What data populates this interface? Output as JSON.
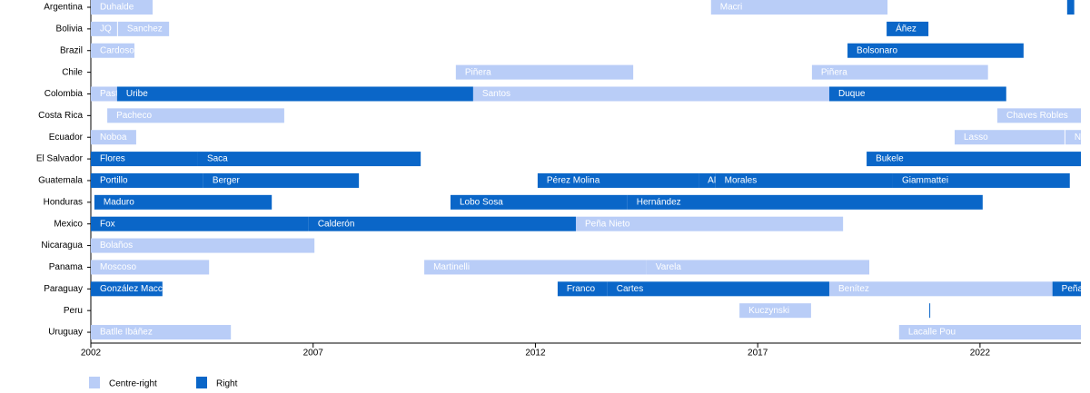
{
  "chart_data": {
    "type": "timeline",
    "series": [
      {
        "name": "Centre-right",
        "color": "#b9cdf7"
      },
      {
        "name": "Right",
        "color": "#0a66c8"
      }
    ],
    "xlim": [
      2002,
      2024.27
    ],
    "xticks": [
      2002,
      2007,
      2012,
      2017,
      2022
    ],
    "rows": [
      {
        "country": "Argentina",
        "segments": [
          {
            "label": "Duhalde",
            "start": 2002,
            "end": 2003.39,
            "group": 0
          },
          {
            "label": "Macri",
            "start": 2015.95,
            "end": 2019.92,
            "group": 0
          },
          {
            "start": 2023.96,
            "end": 2024.12,
            "group": 1
          }
        ]
      },
      {
        "country": "Bolivia",
        "segments": [
          {
            "label": "JQ",
            "start": 2002,
            "end": 2002.59,
            "group": 0
          },
          {
            "label": "Sanchez",
            "start": 2002.61,
            "end": 2003.76,
            "group": 0
          },
          {
            "label": "Áñez",
            "start": 2019.9,
            "end": 2020.84,
            "group": 1
          }
        ]
      },
      {
        "country": "Brazil",
        "segments": [
          {
            "label": "Cardoso",
            "start": 2002,
            "end": 2002.98,
            "group": 0
          },
          {
            "label": "Bolsonaro",
            "start": 2019.02,
            "end": 2022.98,
            "group": 1
          }
        ]
      },
      {
        "country": "Chile",
        "segments": [
          {
            "label": "Piñera",
            "start": 2010.21,
            "end": 2014.2,
            "group": 0
          },
          {
            "label": "Piñera",
            "start": 2018.22,
            "end": 2022.18,
            "group": 0
          }
        ]
      },
      {
        "country": "Colombia",
        "segments": [
          {
            "label": "Pastrana",
            "start": 2002,
            "end": 2002.59,
            "group": 0
          },
          {
            "label": "Uribe",
            "start": 2002.59,
            "end": 2010.6,
            "group": 1
          },
          {
            "label": "Santos",
            "start": 2010.6,
            "end": 2018.61,
            "group": 0
          },
          {
            "label": "Duque",
            "start": 2018.61,
            "end": 2022.59,
            "group": 1
          }
        ]
      },
      {
        "country": "Costa Rica",
        "segments": [
          {
            "label": "Pacheco",
            "start": 2002.37,
            "end": 2006.35,
            "group": 0
          },
          {
            "label": "Chaves Robles",
            "start": 2022.39,
            "end": 2024.27,
            "group": 0
          }
        ]
      },
      {
        "country": "Ecuador",
        "segments": [
          {
            "label": "Noboa",
            "start": 2002,
            "end": 2003.02,
            "group": 0
          },
          {
            "label": "Lasso",
            "start": 2021.43,
            "end": 2023.9,
            "group": 0
          },
          {
            "label": "Noboa",
            "start": 2023.92,
            "end": 2024.27,
            "group": 0
          }
        ]
      },
      {
        "country": "El Salvador",
        "segments": [
          {
            "label": "Flores",
            "start": 2002,
            "end": 2004.41,
            "group": 1
          },
          {
            "label": "Saca",
            "start": 2004.41,
            "end": 2009.42,
            "group": 1
          },
          {
            "label": "Bukele",
            "start": 2019.45,
            "end": 2024.27,
            "group": 1
          }
        ]
      },
      {
        "country": "Guatemala",
        "segments": [
          {
            "label": "Portillo",
            "start": 2002,
            "end": 2004.53,
            "group": 1
          },
          {
            "label": "Berger",
            "start": 2004.53,
            "end": 2008.03,
            "group": 1
          },
          {
            "label": "Pérez Molina",
            "start": 2012.05,
            "end": 2015.67,
            "group": 1
          },
          {
            "label": "AM",
            "start": 2015.67,
            "end": 2016.05,
            "group": 1
          },
          {
            "label": "Morales",
            "start": 2016.05,
            "end": 2020.04,
            "group": 1
          },
          {
            "label": "Giammattei",
            "start": 2020.04,
            "end": 2024.02,
            "group": 1
          }
        ]
      },
      {
        "country": "Honduras",
        "segments": [
          {
            "label": "Maduro",
            "start": 2002.08,
            "end": 2006.07,
            "group": 1
          },
          {
            "label": "Lobo Sosa",
            "start": 2010.09,
            "end": 2014.07,
            "group": 1
          },
          {
            "label": "Hernández",
            "start": 2014.07,
            "end": 2022.06,
            "group": 1
          }
        ]
      },
      {
        "country": "Mexico",
        "segments": [
          {
            "label": "Fox",
            "start": 2002,
            "end": 2006.9,
            "group": 1
          },
          {
            "label": "Calderón",
            "start": 2006.9,
            "end": 2012.91,
            "group": 1
          },
          {
            "label": "Peña Nieto",
            "start": 2012.91,
            "end": 2018.92,
            "group": 0
          }
        ]
      },
      {
        "country": "Nicaragua",
        "segments": [
          {
            "label": "Bolaños",
            "start": 2002,
            "end": 2007.03,
            "group": 0
          }
        ]
      },
      {
        "country": "Panama",
        "segments": [
          {
            "label": "Moscoso",
            "start": 2002,
            "end": 2004.66,
            "group": 0
          },
          {
            "label": "Martinelli",
            "start": 2009.5,
            "end": 2014.5,
            "group": 0
          },
          {
            "label": "Varela",
            "start": 2014.5,
            "end": 2019.51,
            "group": 0
          }
        ]
      },
      {
        "country": "Paraguay",
        "segments": [
          {
            "label": "González Macchi",
            "start": 2002,
            "end": 2003.61,
            "group": 1
          },
          {
            "label": "Franco",
            "start": 2012.5,
            "end": 2013.62,
            "group": 1
          },
          {
            "label": "Cartes",
            "start": 2013.62,
            "end": 2018.61,
            "group": 1
          },
          {
            "label": "Benítez",
            "start": 2018.61,
            "end": 2023.63,
            "group": 0
          },
          {
            "label": "Peña",
            "start": 2023.63,
            "end": 2024.27,
            "group": 1
          }
        ]
      },
      {
        "country": "Peru",
        "segments": [
          {
            "label": "Kuczynski",
            "start": 2016.59,
            "end": 2018.2,
            "group": 0
          },
          {
            "start": 2020.86,
            "end": 2020.88,
            "group": 1
          }
        ]
      },
      {
        "country": "Uruguay",
        "segments": [
          {
            "label": "Batlle Ibáñez",
            "start": 2002,
            "end": 2005.15,
            "group": 0
          },
          {
            "label": "Lacalle Pou",
            "start": 2020.18,
            "end": 2024.27,
            "group": 0
          }
        ]
      }
    ]
  }
}
